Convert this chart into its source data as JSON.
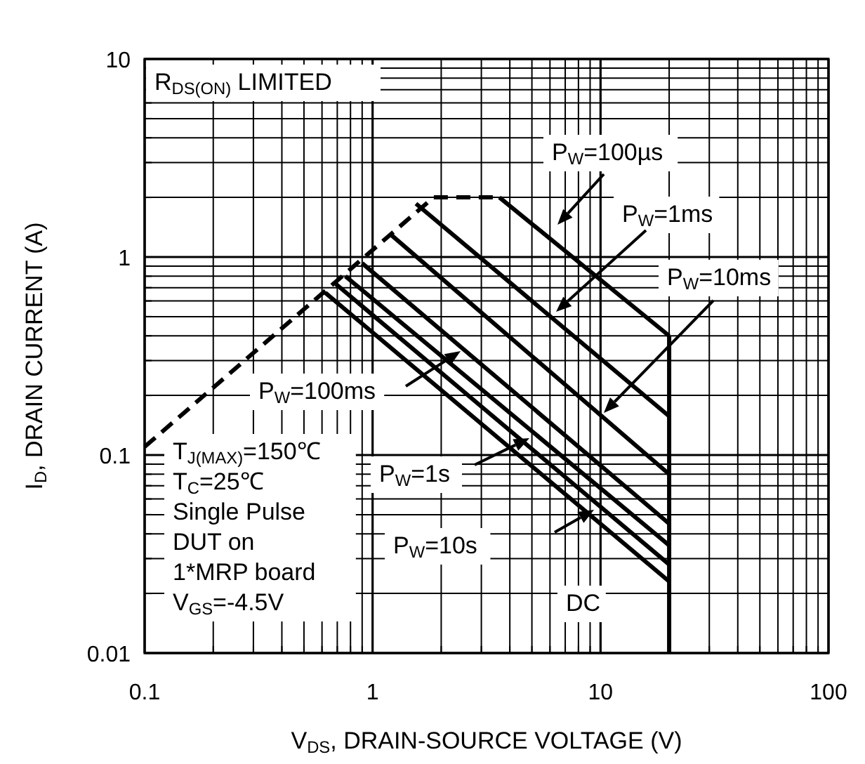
{
  "chart_data": {
    "type": "line",
    "xlabel": "V$_{DS}$, DRAIN-SOURCE VOLTAGE (V)",
    "ylabel": "I$_{D}$, DRAIN CURRENT (A)",
    "log": "xy",
    "grid": true,
    "marker": "none",
    "xlim": [
      0.1,
      100
    ],
    "ylim": [
      0.01,
      10
    ],
    "xticks": [
      0.1,
      {
        "value": 0.2,
        "label": null
      },
      {
        "value": 0.3,
        "label": null
      },
      {
        "value": 0.4,
        "label": null
      },
      {
        "value": 0.5,
        "label": null
      },
      {
        "value": 0.6,
        "label": null
      },
      {
        "value": 0.7,
        "label": null
      },
      {
        "value": 0.8,
        "label": null
      },
      {
        "value": 0.9,
        "label": null
      },
      1,
      {
        "value": 2,
        "label": null
      },
      {
        "value": 3,
        "label": null
      },
      {
        "value": 4,
        "label": null
      },
      {
        "value": 5,
        "label": null
      },
      {
        "value": 6,
        "label": null
      },
      {
        "value": 7,
        "label": null
      },
      {
        "value": 8,
        "label": null
      },
      {
        "value": 9,
        "label": null
      },
      10,
      {
        "value": 20,
        "label": null
      },
      {
        "value": 30,
        "label": null
      },
      {
        "value": 40,
        "label": null
      },
      {
        "value": 50,
        "label": null
      },
      {
        "value": 60,
        "label": null
      },
      {
        "value": 70,
        "label": null
      },
      {
        "value": 80,
        "label": null
      },
      {
        "value": 90,
        "label": null
      },
      100
    ],
    "yticks": [
      0.01,
      {
        "value": 0.02,
        "label": null
      },
      {
        "value": 0.03,
        "label": null
      },
      {
        "value": 0.04,
        "label": null
      },
      {
        "value": 0.05,
        "label": null
      },
      {
        "value": 0.06,
        "label": null
      },
      {
        "value": 0.07,
        "label": null
      },
      {
        "value": 0.08,
        "label": null
      },
      {
        "value": 0.09,
        "label": null
      },
      0.1,
      {
        "value": 0.2,
        "label": null
      },
      {
        "value": 0.3,
        "label": null
      },
      {
        "value": 0.4,
        "label": null
      },
      {
        "value": 0.5,
        "label": null
      },
      {
        "value": 0.6,
        "label": null
      },
      {
        "value": 0.7,
        "label": null
      },
      {
        "value": 0.8,
        "label": null
      },
      {
        "value": 0.9,
        "label": null
      },
      1,
      {
        "value": 2,
        "label": null
      },
      {
        "value": 3,
        "label": null
      },
      {
        "value": 4,
        "label": null
      },
      {
        "value": 5,
        "label": null
      },
      {
        "value": 6,
        "label": null
      },
      {
        "value": 7,
        "label": null
      },
      {
        "value": 8,
        "label": null
      },
      {
        "value": 9,
        "label": null
      },
      10
    ],
    "series": [
      {
        "color": "#000000",
        "line_style": "dashed",
        "x": [
          0.1,
          1.85,
          3.6
        ],
        "values": [
          0.11,
          2,
          2
        ]
      },
      {
        "color": "#000000",
        "x": [
          3.6,
          20
        ],
        "values": [
          2,
          0.4
        ]
      },
      {
        "color": "#000000",
        "x": [
          1.55,
          20
        ],
        "values": [
          1.86,
          0.157
        ]
      },
      {
        "color": "#000000",
        "x": [
          1.2,
          20
        ],
        "values": [
          1.3,
          0.08
        ]
      },
      {
        "color": "#000000",
        "x": [
          0.9,
          20
        ],
        "values": [
          0.93,
          0.045
        ]
      },
      {
        "color": "#000000",
        "x": [
          0.76,
          20
        ],
        "values": [
          0.8,
          0.035
        ]
      },
      {
        "color": "#000000",
        "x": [
          0.69,
          20
        ],
        "values": [
          0.73,
          0.028
        ]
      },
      {
        "color": "#000000",
        "x": [
          0.62,
          20
        ],
        "values": [
          0.66,
          0.023
        ]
      },
      {
        "color": "#000000",
        "x": [
          20,
          20
        ],
        "values": [
          0.4,
          0.01
        ]
      }
    ],
    "annotations": [
      "R$_{DS(ON)}$ LIMITED",
      "P$_{W}$=100µs",
      "P$_{W}$=1ms",
      "P$_{W}$=10ms",
      "P$_{W}$=100ms",
      "P$_{W}$=1s",
      "P$_{W}$=10s",
      "DC",
      "T$_{J(MAX)}$=150℃\nT$_{C}$=25℃\nSingle Pulse\nDUT on\n1*MRP board\nV$_{GS}$=-4.5V"
    ]
  }
}
